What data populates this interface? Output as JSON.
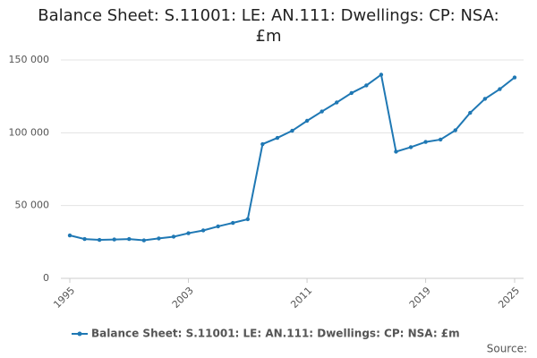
{
  "chart_data": {
    "type": "line",
    "title": "Balance Sheet: S.11001: LE: AN.111: Dwellings: CP: NSA: £m",
    "x": [
      1995,
      1996,
      1997,
      1998,
      1999,
      2000,
      2001,
      2002,
      2003,
      2004,
      2005,
      2006,
      2007,
      2008,
      2009,
      2010,
      2011,
      2012,
      2013,
      2014,
      2015,
      2016,
      2017,
      2018,
      2019,
      2020,
      2021,
      2022,
      2023,
      2024,
      2025
    ],
    "series": [
      {
        "name": "Balance Sheet: S.11001: LE: AN.111: Dwellings: CP: NSA: £m",
        "color": "#1f78b4",
        "values": [
          29500,
          27000,
          26400,
          26700,
          27000,
          26100,
          27400,
          28600,
          31000,
          32900,
          35700,
          38100,
          40600,
          92200,
          96500,
          101400,
          108200,
          114600,
          120800,
          127300,
          132500,
          139900,
          87000,
          90100,
          93700,
          95300,
          101700,
          113700,
          123300,
          130000,
          138000
        ]
      }
    ],
    "xlim": [
      1995,
      2025
    ],
    "xticks": [
      1995,
      2003,
      2011,
      2019,
      2025
    ],
    "ylim": [
      0,
      150000
    ],
    "yticks": [
      0,
      {
        "value": 50000,
        "label": "50 000"
      },
      {
        "value": 100000,
        "label": "100 000"
      },
      {
        "value": 150000,
        "label": "150 000"
      }
    ],
    "grid": true,
    "legend": "bottom",
    "source": "Source:"
  }
}
